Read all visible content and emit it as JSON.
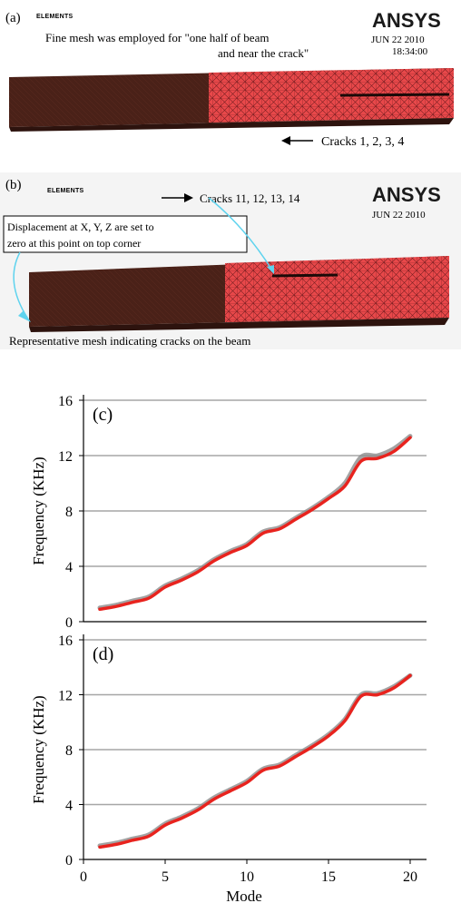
{
  "panels": {
    "a": {
      "label": "(a)",
      "small_label": "ELEMENTS",
      "logo": "ANSYS",
      "date": "JUN 22 2010",
      "time": "18:34:00",
      "note_line1": "Fine mesh was employed for \"one half of beam",
      "note_line2": "and near the crack\"",
      "cracks": "Cracks 1, 2, 3, 4"
    },
    "b": {
      "label": "(b)",
      "small_label": "ELEMENTS",
      "logo": "ANSYS",
      "date": "JUN 22 2010",
      "cracks": "Cracks 11, 12, 13, 14",
      "box_line1": "Displacement at X, Y, Z are set to",
      "box_line2": "zero at this point on top corner",
      "caption": "Representative mesh indicating cracks on the beam"
    }
  },
  "colors": {
    "beam_dark": "#4a2118",
    "beam_mesh": "#e8484a",
    "series_red": "#e8231e",
    "series_gray": "#8c8c8c",
    "grid": "#a6a6a6",
    "annotation_arrow": "#5fd3ee"
  },
  "chart_data": [
    {
      "type": "line",
      "label": "(c)",
      "xlabel": "",
      "ylabel": "Frequency (KHz)",
      "xlim": [
        0,
        21
      ],
      "ylim": [
        0,
        16
      ],
      "yticks": [
        0,
        4,
        8,
        12,
        16
      ],
      "xticks": [],
      "grid": "horizontal",
      "x": [
        1,
        2,
        3,
        4,
        5,
        6,
        7,
        8,
        9,
        10,
        11,
        12,
        13,
        14,
        15,
        16,
        17,
        18,
        19,
        20
      ],
      "series": [
        {
          "color": "#8c8c8c",
          "values": [
            1.0,
            1.2,
            1.5,
            1.8,
            2.6,
            3.1,
            3.7,
            4.5,
            5.1,
            5.6,
            6.5,
            6.8,
            7.5,
            8.2,
            9.0,
            10.0,
            11.9,
            12.0,
            12.5,
            13.4
          ]
        },
        {
          "color": "#e8231e",
          "values": [
            0.9,
            1.1,
            1.4,
            1.7,
            2.5,
            3.0,
            3.6,
            4.4,
            5.0,
            5.5,
            6.4,
            6.7,
            7.4,
            8.1,
            8.9,
            9.8,
            11.6,
            11.8,
            12.3,
            13.3
          ]
        }
      ]
    },
    {
      "type": "line",
      "label": "(d)",
      "xlabel": "Mode",
      "ylabel": "Frequency (KHz)",
      "xlim": [
        0,
        21
      ],
      "ylim": [
        0,
        16
      ],
      "yticks": [
        0,
        4,
        8,
        12,
        16
      ],
      "xticks": [
        0,
        5,
        10,
        15,
        20
      ],
      "grid": "horizontal",
      "x": [
        1,
        2,
        3,
        4,
        5,
        6,
        7,
        8,
        9,
        10,
        11,
        12,
        13,
        14,
        15,
        16,
        17,
        18,
        19,
        20
      ],
      "series": [
        {
          "color": "#8c8c8c",
          "values": [
            1.0,
            1.2,
            1.5,
            1.8,
            2.6,
            3.1,
            3.7,
            4.5,
            5.1,
            5.7,
            6.6,
            6.9,
            7.6,
            8.3,
            9.1,
            10.2,
            12.0,
            12.1,
            12.6,
            13.4
          ]
        },
        {
          "color": "#e8231e",
          "values": [
            0.9,
            1.1,
            1.4,
            1.7,
            2.5,
            3.0,
            3.6,
            4.4,
            5.0,
            5.6,
            6.5,
            6.8,
            7.5,
            8.2,
            9.0,
            10.1,
            11.9,
            12.0,
            12.5,
            13.4
          ]
        }
      ]
    }
  ]
}
